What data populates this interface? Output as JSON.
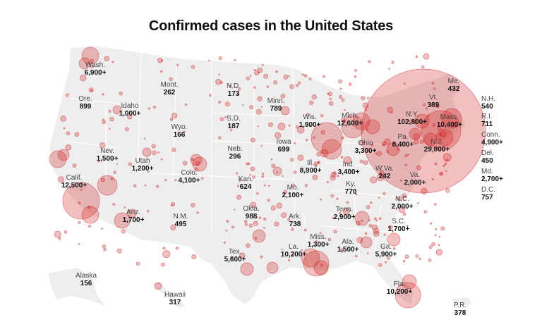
{
  "title": "Confirmed cases in the United States",
  "colors": {
    "land": "#eeeeee",
    "border": "#ffffff",
    "bubble": "#d11d1d",
    "bubble_fill_opacity": 0.28
  },
  "states": [
    {
      "id": "wa",
      "name": "Wash.",
      "count": "6,900+"
    },
    {
      "id": "or",
      "name": "Ore.",
      "count": "899"
    },
    {
      "id": "id",
      "name": "Idaho",
      "count": "1,000+"
    },
    {
      "id": "mt",
      "name": "Mont.",
      "count": "262"
    },
    {
      "id": "nd",
      "name": "N.D.",
      "count": "173"
    },
    {
      "id": "mn",
      "name": "Minn.",
      "count": "789"
    },
    {
      "id": "wy",
      "name": "Wyo.",
      "count": "166"
    },
    {
      "id": "sd",
      "name": "S.D.",
      "count": "187"
    },
    {
      "id": "wi",
      "name": "Wis.",
      "count": "1,900+"
    },
    {
      "id": "mi",
      "name": "Mich.",
      "count": "12,600+"
    },
    {
      "id": "ny",
      "name": "N.Y.",
      "count": "102,800+"
    },
    {
      "id": "vt",
      "name": "Vt.",
      "count": "389"
    },
    {
      "id": "me",
      "name": "Me.",
      "count": "432"
    },
    {
      "id": "ma",
      "name": "Mass.",
      "count": "10,400+"
    },
    {
      "id": "nv",
      "name": "Nev.",
      "count": "1,500+"
    },
    {
      "id": "ut",
      "name": "Utah",
      "count": "1,200+"
    },
    {
      "id": "co",
      "name": "Colo.",
      "count": "4,100+"
    },
    {
      "id": "ne",
      "name": "Neb.",
      "count": "296"
    },
    {
      "id": "ia",
      "name": "Iowa",
      "count": "699"
    },
    {
      "id": "il",
      "name": "Ill.",
      "count": "8,900+"
    },
    {
      "id": "in",
      "name": "Ind.",
      "count": "3,400+"
    },
    {
      "id": "oh",
      "name": "Ohio",
      "count": "3,300+"
    },
    {
      "id": "pa",
      "name": "Pa.",
      "count": "8,400+"
    },
    {
      "id": "nj",
      "name": "N.J.",
      "count": "29,800+"
    },
    {
      "id": "ca",
      "name": "Calif.",
      "count": "12,500+"
    },
    {
      "id": "ks",
      "name": "Kan.",
      "count": "624"
    },
    {
      "id": "mo",
      "name": "Mo.",
      "count": "2,100+"
    },
    {
      "id": "ky",
      "name": "Ky.",
      "count": "770"
    },
    {
      "id": "wv",
      "name": "W.Va.",
      "count": "242"
    },
    {
      "id": "va",
      "name": "Va.",
      "count": "2,000+"
    },
    {
      "id": "az",
      "name": "Ariz.",
      "count": "1,700+"
    },
    {
      "id": "nm",
      "name": "N.M.",
      "count": "495"
    },
    {
      "id": "ok",
      "name": "Okla.",
      "count": "988"
    },
    {
      "id": "ar",
      "name": "Ark.",
      "count": "738"
    },
    {
      "id": "tn",
      "name": "Tenn.",
      "count": "2,900+"
    },
    {
      "id": "nc",
      "name": "N.C.",
      "count": "2,000+"
    },
    {
      "id": "sc",
      "name": "S.C.",
      "count": "1,700+"
    },
    {
      "id": "ms",
      "name": "Miss.",
      "count": "1,300+"
    },
    {
      "id": "al",
      "name": "Ala.",
      "count": "1,500+"
    },
    {
      "id": "ga",
      "name": "Ga.",
      "count": "5,900+"
    },
    {
      "id": "tx",
      "name": "Tex.",
      "count": "5,600+"
    },
    {
      "id": "la",
      "name": "La.",
      "count": "10,200+"
    },
    {
      "id": "fl",
      "name": "Fla.",
      "count": "10,200+"
    },
    {
      "id": "ak",
      "name": "Alaska",
      "count": "156"
    },
    {
      "id": "hi",
      "name": "Hawaii",
      "count": "317"
    },
    {
      "id": "pr",
      "name": "P.R.",
      "count": "378"
    }
  ],
  "side_states": [
    {
      "id": "nh",
      "name": "N.H.",
      "count": "540"
    },
    {
      "id": "ri",
      "name": "R.I.",
      "count": "711"
    },
    {
      "id": "ct",
      "name": "Conn.",
      "count": "4,900+"
    },
    {
      "id": "de",
      "name": "Del.",
      "count": "450"
    },
    {
      "id": "md",
      "name": "Md.",
      "count": "2,700+"
    },
    {
      "id": "dc",
      "name": "D.C.",
      "count": "757"
    }
  ]
}
